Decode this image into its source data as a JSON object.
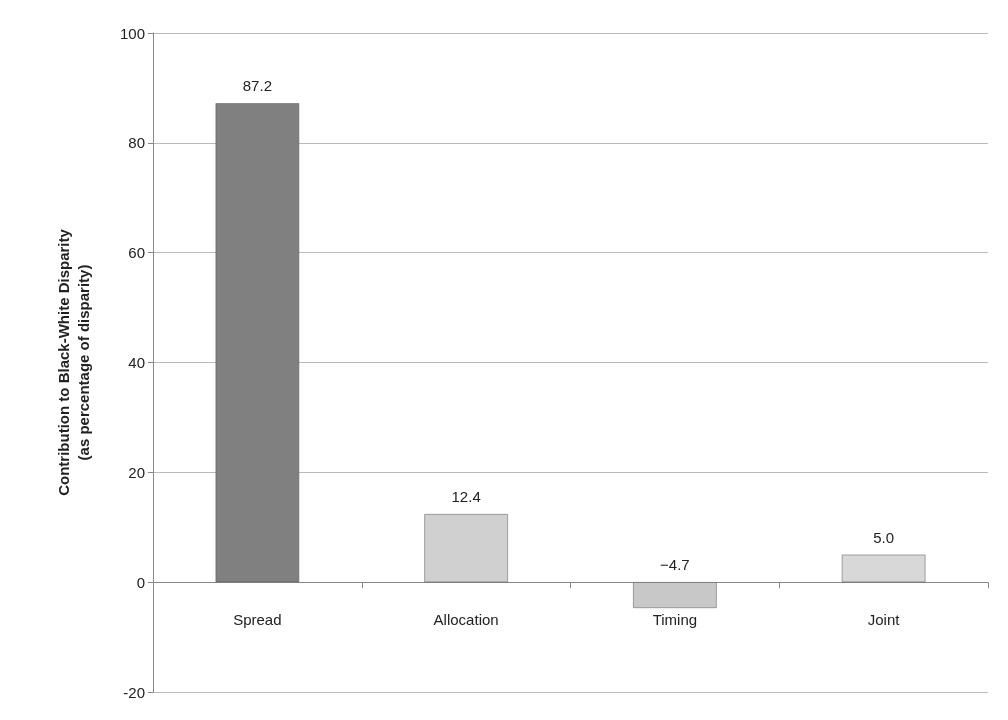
{
  "chart_data": {
    "type": "bar",
    "ylabel": "Contribution to Black-White Disparity\n(as percentage of disparity)",
    "categories": [
      "Spread",
      "Allocation",
      "Timing",
      "Joint"
    ],
    "values": [
      87.2,
      12.4,
      -4.7,
      5.0
    ],
    "colors": [
      "#808080",
      "#d0d0d0",
      "#c8c8c8",
      "#d8d8d8"
    ],
    "value_labels": [
      "87.2",
      "12.4",
      "−4.7",
      "5.0"
    ],
    "ylim": [
      -20,
      100
    ],
    "yticks": [
      -20,
      0,
      20,
      40,
      60,
      80,
      100
    ],
    "grid": "y"
  }
}
